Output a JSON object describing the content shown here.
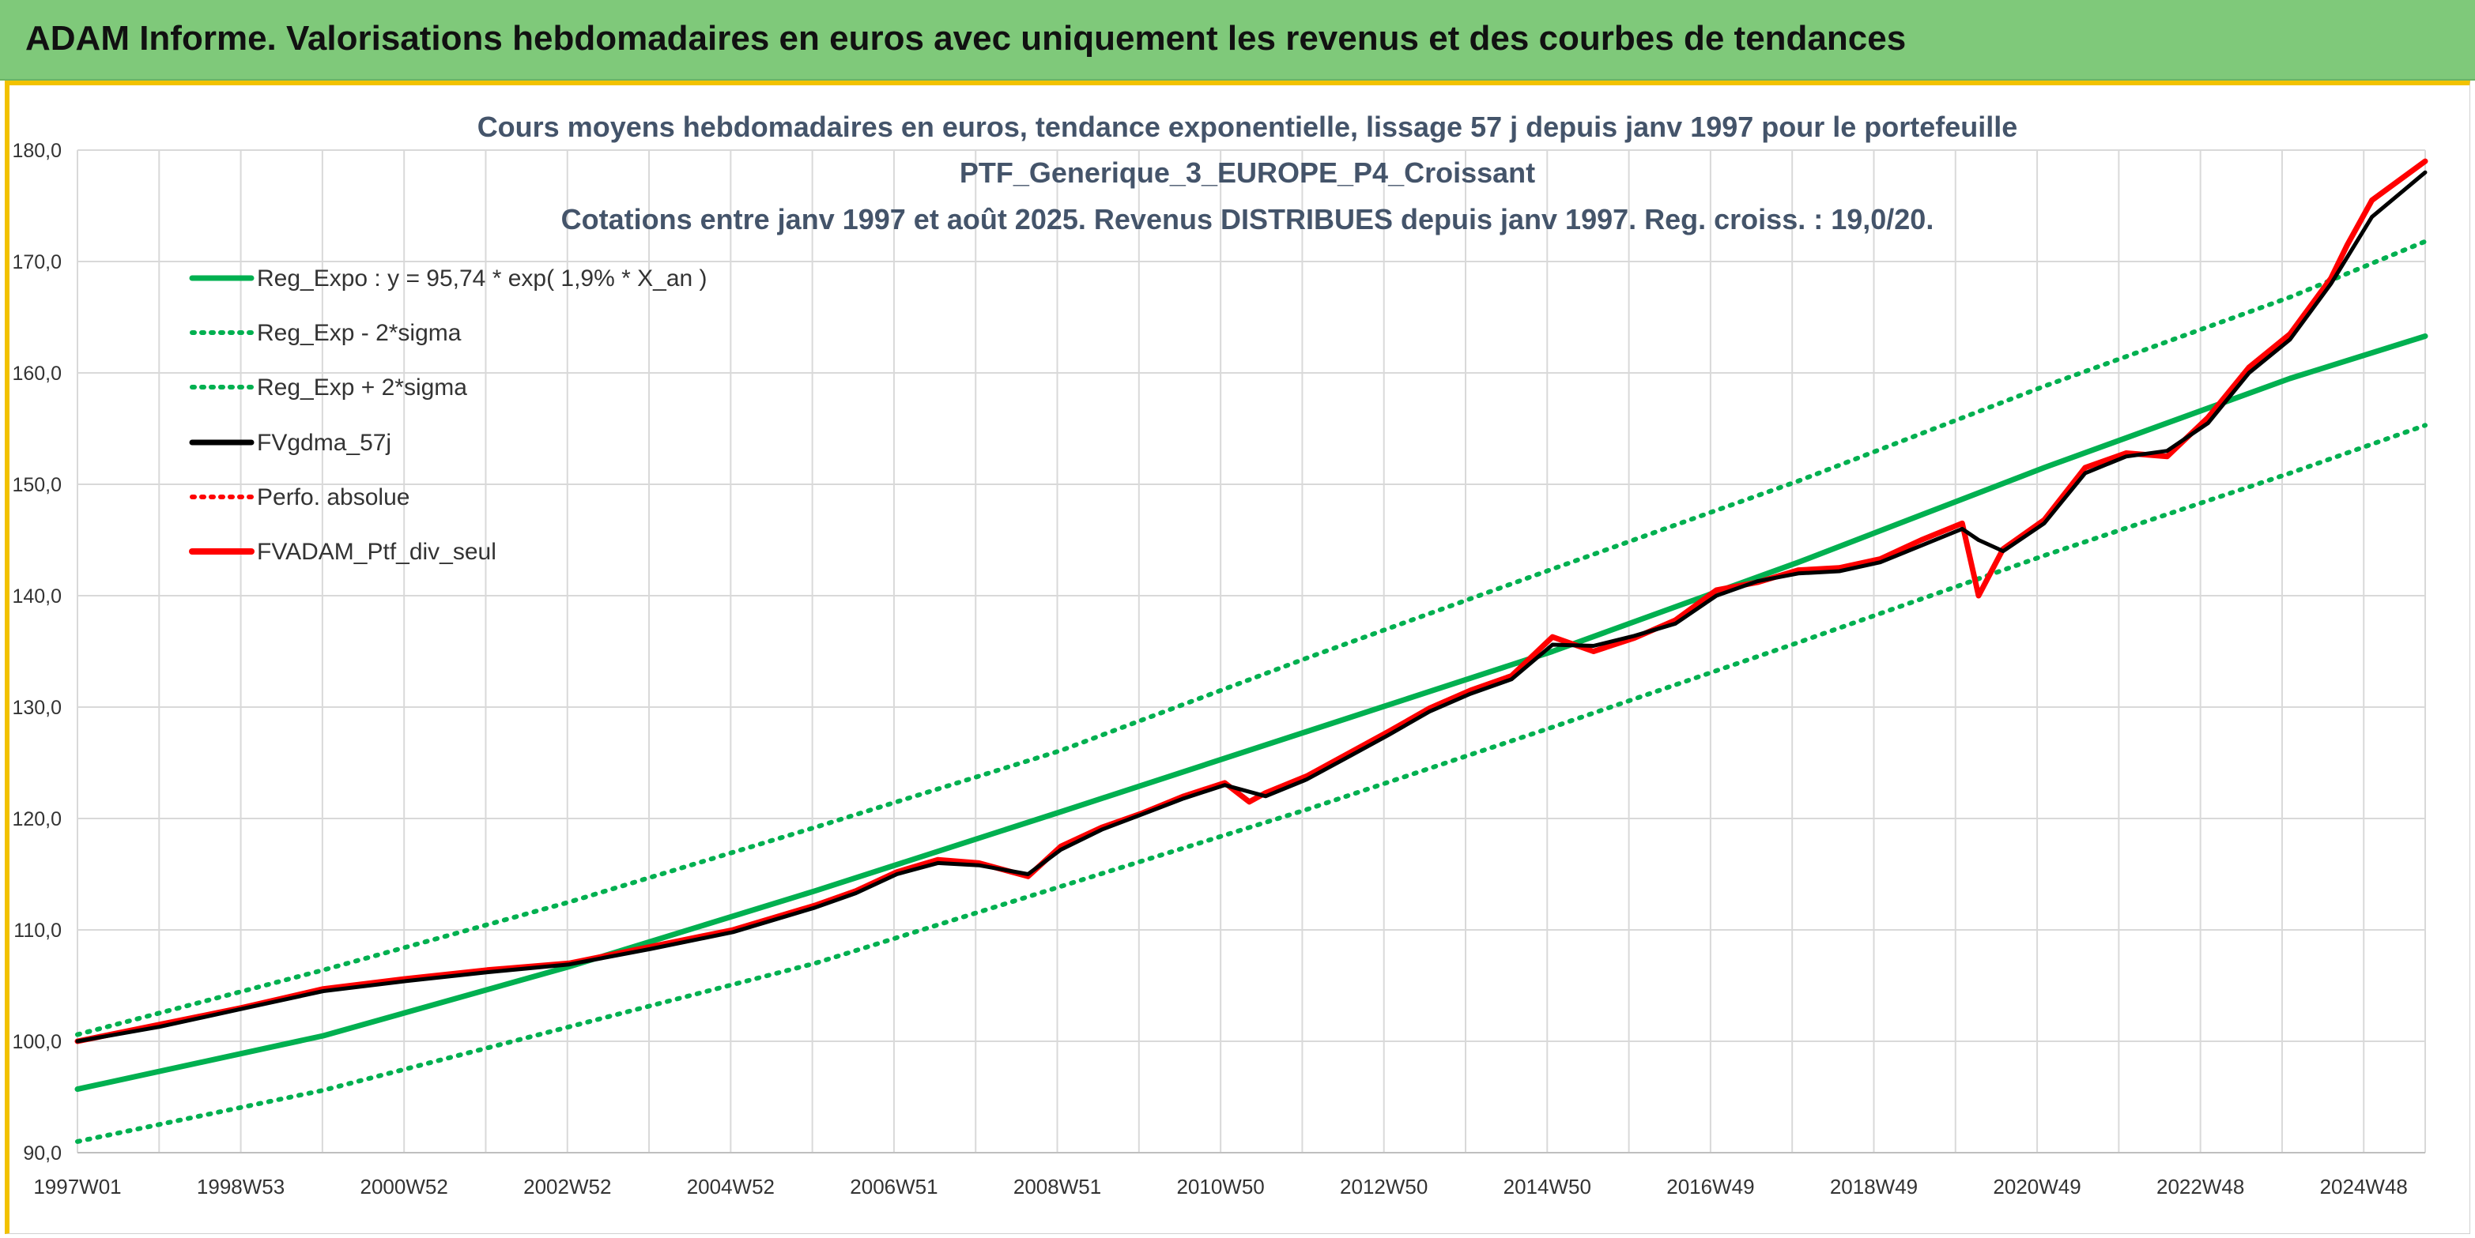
{
  "header": {
    "title": "ADAM Informe. Valorisations hebdomadaires en euros avec uniquement les revenus et des courbes de tendances"
  },
  "colors": {
    "header_bg": "#7fc97a",
    "frame_accent": "#f2c200",
    "reg_expo": "#00b050",
    "fvgdma": "#000000",
    "perfo": "#ff0000",
    "fvadam": "#ff0000",
    "title_text": "#44546a"
  },
  "chart_data": {
    "type": "line",
    "title_lines": [
      "Cours moyens hebdomadaires en euros, tendance exponentielle, lissage 57 j depuis janv 1997 pour le portefeuille",
      "PTF_Generique_3_EUROPE_P4_Croissant",
      "Cotations entre janv 1997 et août 2025. Revenus DISTRIBUES depuis janv 1997. Reg. croiss. : 19,0/20."
    ],
    "xlabel": "",
    "ylabel": "",
    "x_tick_labels": [
      "1997W01",
      "1998W53",
      "2000W52",
      "2002W52",
      "2004W52",
      "2006W51",
      "2008W51",
      "2010W50",
      "2012W50",
      "2014W50",
      "2016W49",
      "2018W49",
      "2020W49",
      "2022W48",
      "2024W48"
    ],
    "x_range": [
      1997.0,
      2025.65
    ],
    "ylim": [
      90,
      180
    ],
    "y_ticks": [
      90,
      100,
      110,
      120,
      130,
      140,
      150,
      160,
      170,
      180
    ],
    "y_tick_labels": [
      "90,0",
      "100,0",
      "110,0",
      "120,0",
      "130,0",
      "140,0",
      "150,0",
      "160,0",
      "170,0",
      "180,0"
    ],
    "grid": true,
    "legend_position": "top-left",
    "legend": [
      {
        "label": "Reg_Expo : y = 95,74 * exp( 1,9% *  X_an )",
        "style": "solid-green"
      },
      {
        "label": "Reg_Exp - 2*sigma",
        "style": "dotted-green"
      },
      {
        "label": "Reg_Exp + 2*sigma",
        "style": "dotted-green"
      },
      {
        "label": "FVgdma_57j",
        "style": "solid-black"
      },
      {
        "label": "Perfo. absolue",
        "style": "dotted-red"
      },
      {
        "label": "FVADAM_Ptf_div_seul",
        "style": "solid-red"
      }
    ],
    "series": [
      {
        "name": "Reg_Expo : y = 95,74 * exp( 1,9% *  X_an )",
        "x": [
          1997.0,
          2000.0,
          2003.0,
          2006.0,
          2009.0,
          2012.0,
          2015.0,
          2018.0,
          2021.0,
          2024.0,
          2025.65
        ],
        "y": [
          95.7,
          100.5,
          106.7,
          113.5,
          120.6,
          127.8,
          135.0,
          143.0,
          151.5,
          159.5,
          163.3
        ]
      },
      {
        "name": "Reg_Exp - 2*sigma",
        "x": [
          1997.0,
          2000.0,
          2003.0,
          2006.0,
          2009.0,
          2012.0,
          2015.0,
          2018.0,
          2021.0,
          2024.0,
          2025.65
        ],
        "y": [
          91.0,
          95.6,
          101.3,
          107.0,
          113.9,
          120.8,
          128.2,
          135.8,
          143.6,
          151.0,
          155.3
        ]
      },
      {
        "name": "Reg_Exp + 2*sigma",
        "x": [
          1997.0,
          2000.0,
          2003.0,
          2006.0,
          2009.0,
          2012.0,
          2015.0,
          2018.0,
          2021.0,
          2024.0,
          2025.65
        ],
        "y": [
          100.6,
          106.4,
          112.5,
          119.2,
          126.1,
          134.4,
          142.4,
          150.3,
          158.8,
          166.8,
          171.8
        ]
      },
      {
        "name": "FVgdma_57j",
        "x": [
          1997.0,
          1998.0,
          1999.0,
          2000.0,
          2001.0,
          2002.0,
          2003.0,
          2004.0,
          2005.0,
          2006.0,
          2006.5,
          2007.0,
          2007.5,
          2008.0,
          2008.6,
          2009.0,
          2009.5,
          2010.0,
          2010.5,
          2011.0,
          2011.5,
          2012.0,
          2012.5,
          2013.0,
          2013.5,
          2014.0,
          2014.5,
          2015.0,
          2015.5,
          2016.0,
          2016.5,
          2017.0,
          2017.5,
          2018.0,
          2018.5,
          2019.0,
          2019.5,
          2020.0,
          2020.2,
          2020.5,
          2021.0,
          2021.5,
          2022.0,
          2022.5,
          2023.0,
          2023.5,
          2024.0,
          2024.5,
          2025.0,
          2025.65
        ],
        "y": [
          100.0,
          101.3,
          102.9,
          104.5,
          105.4,
          106.2,
          106.9,
          108.3,
          109.8,
          112.0,
          113.3,
          115.0,
          116.0,
          115.8,
          115.0,
          117.2,
          119.0,
          120.4,
          121.8,
          123.0,
          122.0,
          123.5,
          125.5,
          127.5,
          129.6,
          131.2,
          132.5,
          135.6,
          135.5,
          136.4,
          137.5,
          140.0,
          141.3,
          142.0,
          142.2,
          143.0,
          144.5,
          146.0,
          145.0,
          144.0,
          146.5,
          151.0,
          152.5,
          153.0,
          155.5,
          160.0,
          163.0,
          168.0,
          174.0,
          178.0
        ]
      },
      {
        "name": "FVADAM_Ptf_div_seul",
        "x": [
          1997.0,
          1998.0,
          1999.0,
          2000.0,
          2001.0,
          2002.0,
          2003.0,
          2004.0,
          2005.0,
          2006.0,
          2006.5,
          2007.0,
          2007.5,
          2008.0,
          2008.6,
          2009.0,
          2009.5,
          2010.0,
          2010.5,
          2011.0,
          2011.3,
          2011.5,
          2012.0,
          2012.5,
          2013.0,
          2013.5,
          2014.0,
          2014.5,
          2015.0,
          2015.5,
          2016.0,
          2016.5,
          2017.0,
          2017.5,
          2018.0,
          2018.5,
          2019.0,
          2019.5,
          2020.0,
          2020.2,
          2020.5,
          2021.0,
          2021.5,
          2022.0,
          2022.5,
          2023.0,
          2023.5,
          2024.0,
          2024.5,
          2024.7,
          2025.0,
          2025.65
        ],
        "y": [
          100.0,
          101.5,
          103.0,
          104.7,
          105.6,
          106.4,
          107.0,
          108.5,
          110.0,
          112.2,
          113.5,
          115.2,
          116.3,
          116.0,
          114.8,
          117.5,
          119.2,
          120.5,
          122.0,
          123.2,
          121.5,
          122.3,
          123.8,
          125.8,
          127.8,
          129.9,
          131.5,
          132.8,
          136.3,
          135.0,
          136.2,
          137.8,
          140.5,
          141.2,
          142.3,
          142.5,
          143.3,
          145.0,
          146.5,
          140.0,
          144.2,
          146.8,
          151.5,
          152.8,
          152.5,
          156.0,
          160.5,
          163.5,
          168.5,
          171.5,
          175.5,
          179.0
        ]
      }
    ]
  }
}
